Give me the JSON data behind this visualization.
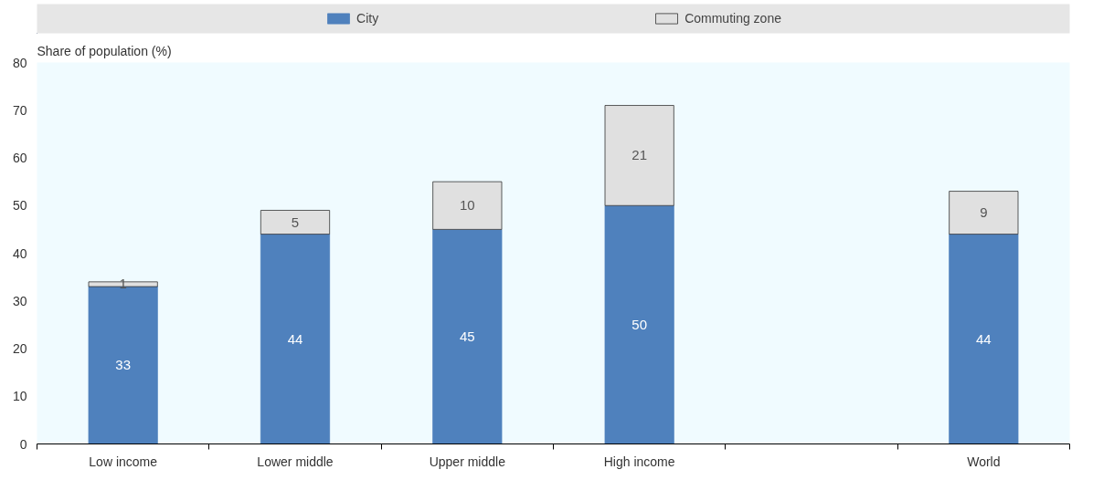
{
  "chart_data": {
    "type": "bar",
    "stacked": true,
    "ylabel": "Share of population (%)",
    "categories": [
      "Low income",
      "Lower middle",
      "Upper middle",
      "High income",
      null,
      "World"
    ],
    "series": [
      {
        "name": "City",
        "color": "#4f81bd",
        "values": [
          33,
          44,
          45,
          50,
          null,
          44
        ]
      },
      {
        "name": "Commuting zone",
        "color": "#e0e0e0",
        "values": [
          1,
          5,
          10,
          21,
          null,
          9
        ]
      }
    ],
    "ylim": [
      0,
      80
    ],
    "yticks": [
      0,
      10,
      20,
      30,
      40,
      50,
      60,
      70,
      80
    ],
    "grid": false,
    "legend": "top",
    "data_labels": true
  }
}
